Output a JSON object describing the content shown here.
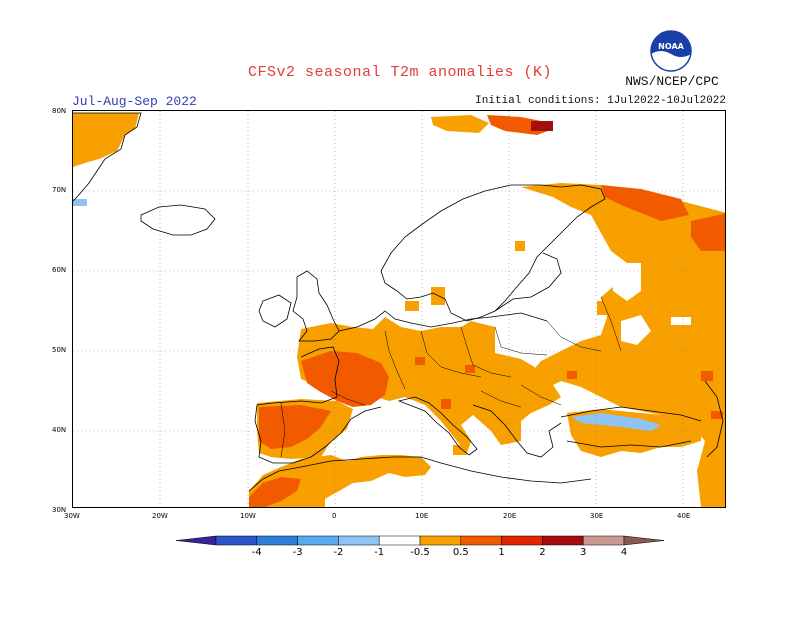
{
  "header": {
    "title": "CFSv2 seasonal T2m anomalies (K)",
    "period": "Jul-Aug-Sep 2022",
    "initial_conditions": "Initial conditions: 1Jul2022-10Jul2022",
    "agency": "NWS/NCEP/CPC",
    "logo_text": "NOAA"
  },
  "map": {
    "lon_range": [
      -30,
      45
    ],
    "lat_range": [
      30,
      80
    ],
    "lat_labels": [
      "80N",
      "70N",
      "60N",
      "50N",
      "40N",
      "30N"
    ],
    "lon_labels": [
      "30W",
      "20W",
      "10W",
      "0",
      "10E",
      "20E",
      "30E",
      "40E"
    ],
    "grid_style": "dotted"
  },
  "legend": {
    "labels": [
      "-4",
      "-3",
      "-2",
      "-1",
      "-0.5",
      "0.5",
      "1",
      "2",
      "3",
      "4"
    ],
    "colors": [
      "#3b1f9e",
      "#2a55c8",
      "#2e7fdc",
      "#5aa8f0",
      "#8ec4f4",
      "#ffffff",
      "#f7a000",
      "#f25a00",
      "#e32400",
      "#a50e0e",
      "#c89a90",
      "#8a5a4c"
    ]
  },
  "colors": {
    "anom_0_5_1": "#f7a000",
    "anom_1_2": "#f25a00",
    "anom_2_3": "#a50e0e",
    "anom_neg_0_5_1": "#8ec4f4",
    "title_red": "#e23c3c",
    "period_blue": "#2f3fb0",
    "coast": "#000000"
  }
}
